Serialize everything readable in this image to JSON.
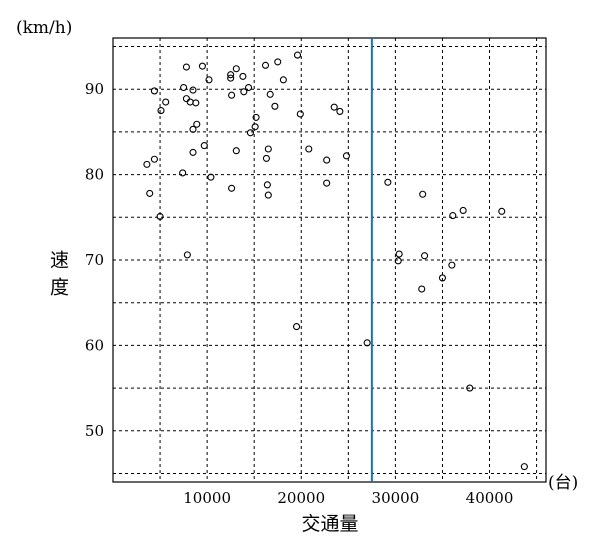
{
  "chart_data": {
    "type": "scatter",
    "xlabel": "交通量",
    "ylabel": "速度",
    "x_unit": "(台)",
    "y_unit": "(km/h)",
    "xlim": [
      0,
      46000
    ],
    "ylim": [
      44,
      96
    ],
    "x_ticks": [
      10000,
      20000,
      30000,
      40000
    ],
    "y_ticks": [
      50,
      60,
      70,
      80,
      90
    ],
    "x_grid": [
      0,
      5000,
      10000,
      15000,
      20000,
      25000,
      30000,
      35000,
      40000,
      45000
    ],
    "y_grid": [
      45,
      50,
      55,
      60,
      65,
      70,
      75,
      80,
      85,
      90,
      95
    ],
    "grid": true,
    "reference_line_x": 27500,
    "reference_line_color": "#1f6fb2",
    "points": [
      {
        "x": 4400,
        "y": 89.8
      },
      {
        "x": 5100,
        "y": 87.5
      },
      {
        "x": 5600,
        "y": 88.5
      },
      {
        "x": 3600,
        "y": 81.2
      },
      {
        "x": 4400,
        "y": 81.8
      },
      {
        "x": 3900,
        "y": 77.8
      },
      {
        "x": 5000,
        "y": 75.1
      },
      {
        "x": 7800,
        "y": 92.6
      },
      {
        "x": 7500,
        "y": 90.2
      },
      {
        "x": 8500,
        "y": 89.9
      },
      {
        "x": 7800,
        "y": 88.9
      },
      {
        "x": 8200,
        "y": 88.5
      },
      {
        "x": 8800,
        "y": 88.4
      },
      {
        "x": 9500,
        "y": 92.7
      },
      {
        "x": 10200,
        "y": 91.1
      },
      {
        "x": 8900,
        "y": 85.9
      },
      {
        "x": 8500,
        "y": 85.3
      },
      {
        "x": 9700,
        "y": 83.4
      },
      {
        "x": 8500,
        "y": 82.6
      },
      {
        "x": 7400,
        "y": 80.2
      },
      {
        "x": 10400,
        "y": 79.7
      },
      {
        "x": 7900,
        "y": 70.6
      },
      {
        "x": 12500,
        "y": 91.7
      },
      {
        "x": 12500,
        "y": 91.3
      },
      {
        "x": 13100,
        "y": 92.4
      },
      {
        "x": 13800,
        "y": 91.5
      },
      {
        "x": 12600,
        "y": 89.3
      },
      {
        "x": 13900,
        "y": 89.7
      },
      {
        "x": 14400,
        "y": 90.2
      },
      {
        "x": 15200,
        "y": 86.7
      },
      {
        "x": 15100,
        "y": 85.6
      },
      {
        "x": 14600,
        "y": 84.9
      },
      {
        "x": 13100,
        "y": 82.8
      },
      {
        "x": 12600,
        "y": 78.4
      },
      {
        "x": 16200,
        "y": 92.8
      },
      {
        "x": 17500,
        "y": 93.2
      },
      {
        "x": 18100,
        "y": 91.1
      },
      {
        "x": 16700,
        "y": 89.4
      },
      {
        "x": 17200,
        "y": 88.0
      },
      {
        "x": 16500,
        "y": 83.0
      },
      {
        "x": 16300,
        "y": 81.9
      },
      {
        "x": 16400,
        "y": 78.8
      },
      {
        "x": 16500,
        "y": 77.6
      },
      {
        "x": 19600,
        "y": 94.0
      },
      {
        "x": 19900,
        "y": 87.1
      },
      {
        "x": 20800,
        "y": 83.0
      },
      {
        "x": 19500,
        "y": 62.2
      },
      {
        "x": 23500,
        "y": 87.9
      },
      {
        "x": 24100,
        "y": 87.4
      },
      {
        "x": 24800,
        "y": 82.2
      },
      {
        "x": 22700,
        "y": 81.7
      },
      {
        "x": 22700,
        "y": 79.0
      },
      {
        "x": 27000,
        "y": 60.3
      },
      {
        "x": 29200,
        "y": 79.1
      },
      {
        "x": 30400,
        "y": 70.7
      },
      {
        "x": 30300,
        "y": 69.9
      },
      {
        "x": 32900,
        "y": 77.7
      },
      {
        "x": 33100,
        "y": 70.5
      },
      {
        "x": 32800,
        "y": 66.6
      },
      {
        "x": 36100,
        "y": 75.2
      },
      {
        "x": 37200,
        "y": 75.8
      },
      {
        "x": 36000,
        "y": 69.4
      },
      {
        "x": 35000,
        "y": 67.9
      },
      {
        "x": 37900,
        "y": 55.0
      },
      {
        "x": 41300,
        "y": 75.7
      },
      {
        "x": 43700,
        "y": 45.8
      }
    ]
  }
}
